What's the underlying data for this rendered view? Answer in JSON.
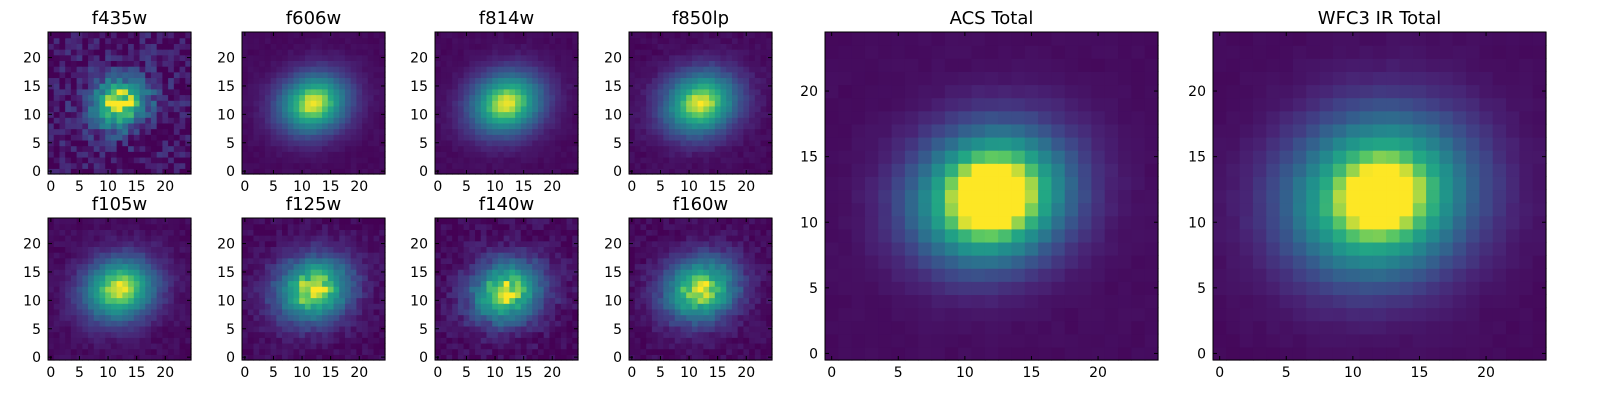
{
  "chart_data": [
    {
      "type": "heatmap",
      "title": "f435w",
      "xlim": [
        0,
        25
      ],
      "ylim": [
        0,
        25
      ],
      "xticks": [
        0,
        5,
        10,
        15,
        20
      ],
      "yticks": [
        0,
        5,
        10,
        15,
        20
      ],
      "colormap": "viridis",
      "center": [
        12,
        12
      ],
      "sigma": [
        3.8,
        3.2
      ],
      "noise": 0.16,
      "background": 0.05,
      "clumpy": false
    },
    {
      "type": "heatmap",
      "title": "f606w",
      "xlim": [
        0,
        25
      ],
      "ylim": [
        0,
        25
      ],
      "xticks": [
        0,
        5,
        10,
        15,
        20
      ],
      "yticks": [
        0,
        5,
        10,
        15,
        20
      ],
      "colormap": "viridis",
      "center": [
        12,
        12
      ],
      "sigma": [
        4.3,
        3.6
      ],
      "noise": 0.02,
      "background": 0.03,
      "clumpy": false
    },
    {
      "type": "heatmap",
      "title": "f814w",
      "xlim": [
        0,
        25
      ],
      "ylim": [
        0,
        25
      ],
      "xticks": [
        0,
        5,
        10,
        15,
        20
      ],
      "yticks": [
        0,
        5,
        10,
        15,
        20
      ],
      "colormap": "viridis",
      "center": [
        12,
        12
      ],
      "sigma": [
        4.5,
        3.7
      ],
      "noise": 0.02,
      "background": 0.03,
      "clumpy": false
    },
    {
      "type": "heatmap",
      "title": "f850lp",
      "xlim": [
        0,
        25
      ],
      "ylim": [
        0,
        25
      ],
      "xticks": [
        0,
        5,
        10,
        15,
        20
      ],
      "yticks": [
        0,
        5,
        10,
        15,
        20
      ],
      "colormap": "viridis",
      "center": [
        12,
        12
      ],
      "sigma": [
        4.6,
        3.8
      ],
      "noise": 0.03,
      "background": 0.03,
      "clumpy": false
    },
    {
      "type": "heatmap",
      "title": "f105w",
      "xlim": [
        0,
        25
      ],
      "ylim": [
        0,
        25
      ],
      "xticks": [
        0,
        5,
        10,
        15,
        20
      ],
      "yticks": [
        0,
        5,
        10,
        15,
        20
      ],
      "colormap": "viridis",
      "center": [
        12,
        12
      ],
      "sigma": [
        4.5,
        3.8
      ],
      "noise": 0.04,
      "background": 0.03,
      "clumpy": false
    },
    {
      "type": "heatmap",
      "title": "f125w",
      "xlim": [
        0,
        25
      ],
      "ylim": [
        0,
        25
      ],
      "xticks": [
        0,
        5,
        10,
        15,
        20
      ],
      "yticks": [
        0,
        5,
        10,
        15,
        20
      ],
      "colormap": "viridis",
      "center": [
        12,
        12
      ],
      "sigma": [
        4.6,
        3.9
      ],
      "noise": 0.05,
      "background": 0.03,
      "clumpy": true
    },
    {
      "type": "heatmap",
      "title": "f140w",
      "xlim": [
        0,
        25
      ],
      "ylim": [
        0,
        25
      ],
      "xticks": [
        0,
        5,
        10,
        15,
        20
      ],
      "yticks": [
        0,
        5,
        10,
        15,
        20
      ],
      "colormap": "viridis",
      "center": [
        12,
        11.5
      ],
      "sigma": [
        4.4,
        3.7
      ],
      "noise": 0.07,
      "background": 0.03,
      "clumpy": true
    },
    {
      "type": "heatmap",
      "title": "f160w",
      "xlim": [
        0,
        25
      ],
      "ylim": [
        0,
        25
      ],
      "xticks": [
        0,
        5,
        10,
        15,
        20
      ],
      "yticks": [
        0,
        5,
        10,
        15,
        20
      ],
      "colormap": "viridis",
      "center": [
        12,
        12
      ],
      "sigma": [
        4.5,
        3.8
      ],
      "noise": 0.05,
      "background": 0.03,
      "clumpy": true
    },
    {
      "type": "heatmap",
      "title": "ACS Total",
      "xlim": [
        0,
        25
      ],
      "ylim": [
        0,
        25
      ],
      "xticks": [
        0,
        5,
        10,
        15,
        20
      ],
      "yticks": [
        0,
        5,
        10,
        15,
        20
      ],
      "colormap": "viridis",
      "center": [
        12,
        12
      ],
      "sigma": [
        4.0,
        3.4
      ],
      "noise": 0.01,
      "background": 0.03,
      "clumpy": false,
      "saturate": 1.25
    },
    {
      "type": "heatmap",
      "title": "WFC3 IR Total",
      "xlim": [
        0,
        25
      ],
      "ylim": [
        0,
        25
      ],
      "xticks": [
        0,
        5,
        10,
        15,
        20
      ],
      "yticks": [
        0,
        5,
        10,
        15,
        20
      ],
      "colormap": "viridis",
      "center": [
        12,
        12
      ],
      "sigma": [
        4.7,
        4.1
      ],
      "noise": 0.01,
      "background": 0.03,
      "clumpy": false,
      "saturate": 1.15
    }
  ]
}
